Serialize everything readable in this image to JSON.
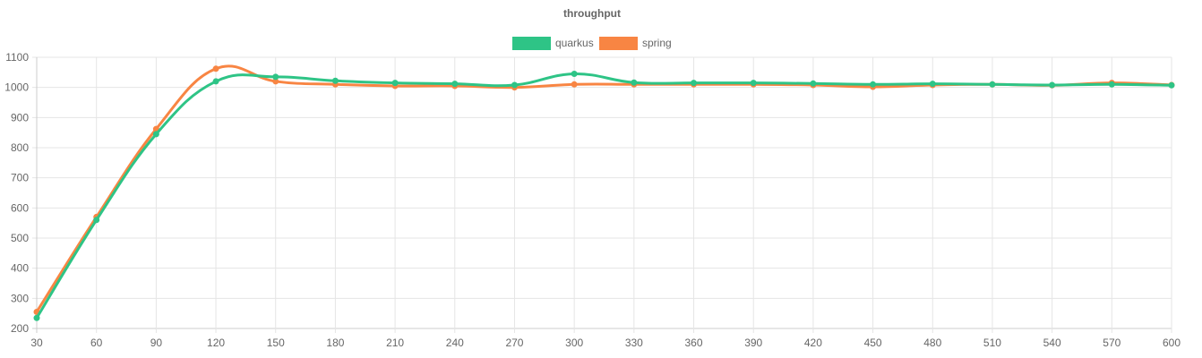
{
  "chart_data": {
    "type": "line",
    "title": "throughput",
    "xlabel": "",
    "ylabel": "",
    "x": [
      30,
      60,
      90,
      120,
      150,
      180,
      210,
      240,
      270,
      300,
      330,
      360,
      390,
      420,
      450,
      480,
      510,
      540,
      570,
      600
    ],
    "ylim": [
      200,
      1100
    ],
    "yticks": [
      200,
      300,
      400,
      500,
      600,
      700,
      800,
      900,
      1000,
      1100
    ],
    "grid": true,
    "legend_position": "top-center",
    "series": [
      {
        "name": "quarkus",
        "color": "#2ec486",
        "values": [
          235,
          560,
          845,
          1020,
          1035,
          1022,
          1015,
          1012,
          1008,
          1045,
          1016,
          1015,
          1015,
          1013,
          1010,
          1012,
          1010,
          1008,
          1010,
          1007
        ]
      },
      {
        "name": "spring",
        "color": "#f88543",
        "values": [
          255,
          570,
          862,
          1062,
          1020,
          1010,
          1005,
          1005,
          1000,
          1010,
          1010,
          1010,
          1010,
          1008,
          1002,
          1008,
          1010,
          1007,
          1015,
          1008
        ]
      }
    ]
  }
}
